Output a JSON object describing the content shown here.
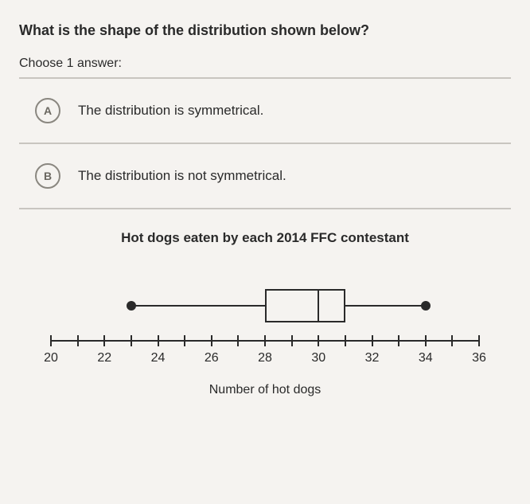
{
  "question": "What is the shape of the distribution shown below?",
  "choose_label": "Choose 1 answer:",
  "options": [
    {
      "letter": "A",
      "text": "The distribution is symmetrical."
    },
    {
      "letter": "B",
      "text": "The distribution is not symmetrical."
    }
  ],
  "chart": {
    "title": "Hot dogs eaten by each 2014 FFC contestant",
    "axis_label": "Number of hot dogs",
    "xmin": 20,
    "xmax": 36,
    "tick_step": 1,
    "label_step": 2,
    "boxplot": {
      "whisker_min": 23,
      "q1": 28,
      "median": 30,
      "q3": 31,
      "whisker_max": 34
    },
    "colors": {
      "fg": "#2a2a2a",
      "bg": "#f5f3f0",
      "divider": "#c8c5c0",
      "circle_border": "#8a8780"
    }
  }
}
